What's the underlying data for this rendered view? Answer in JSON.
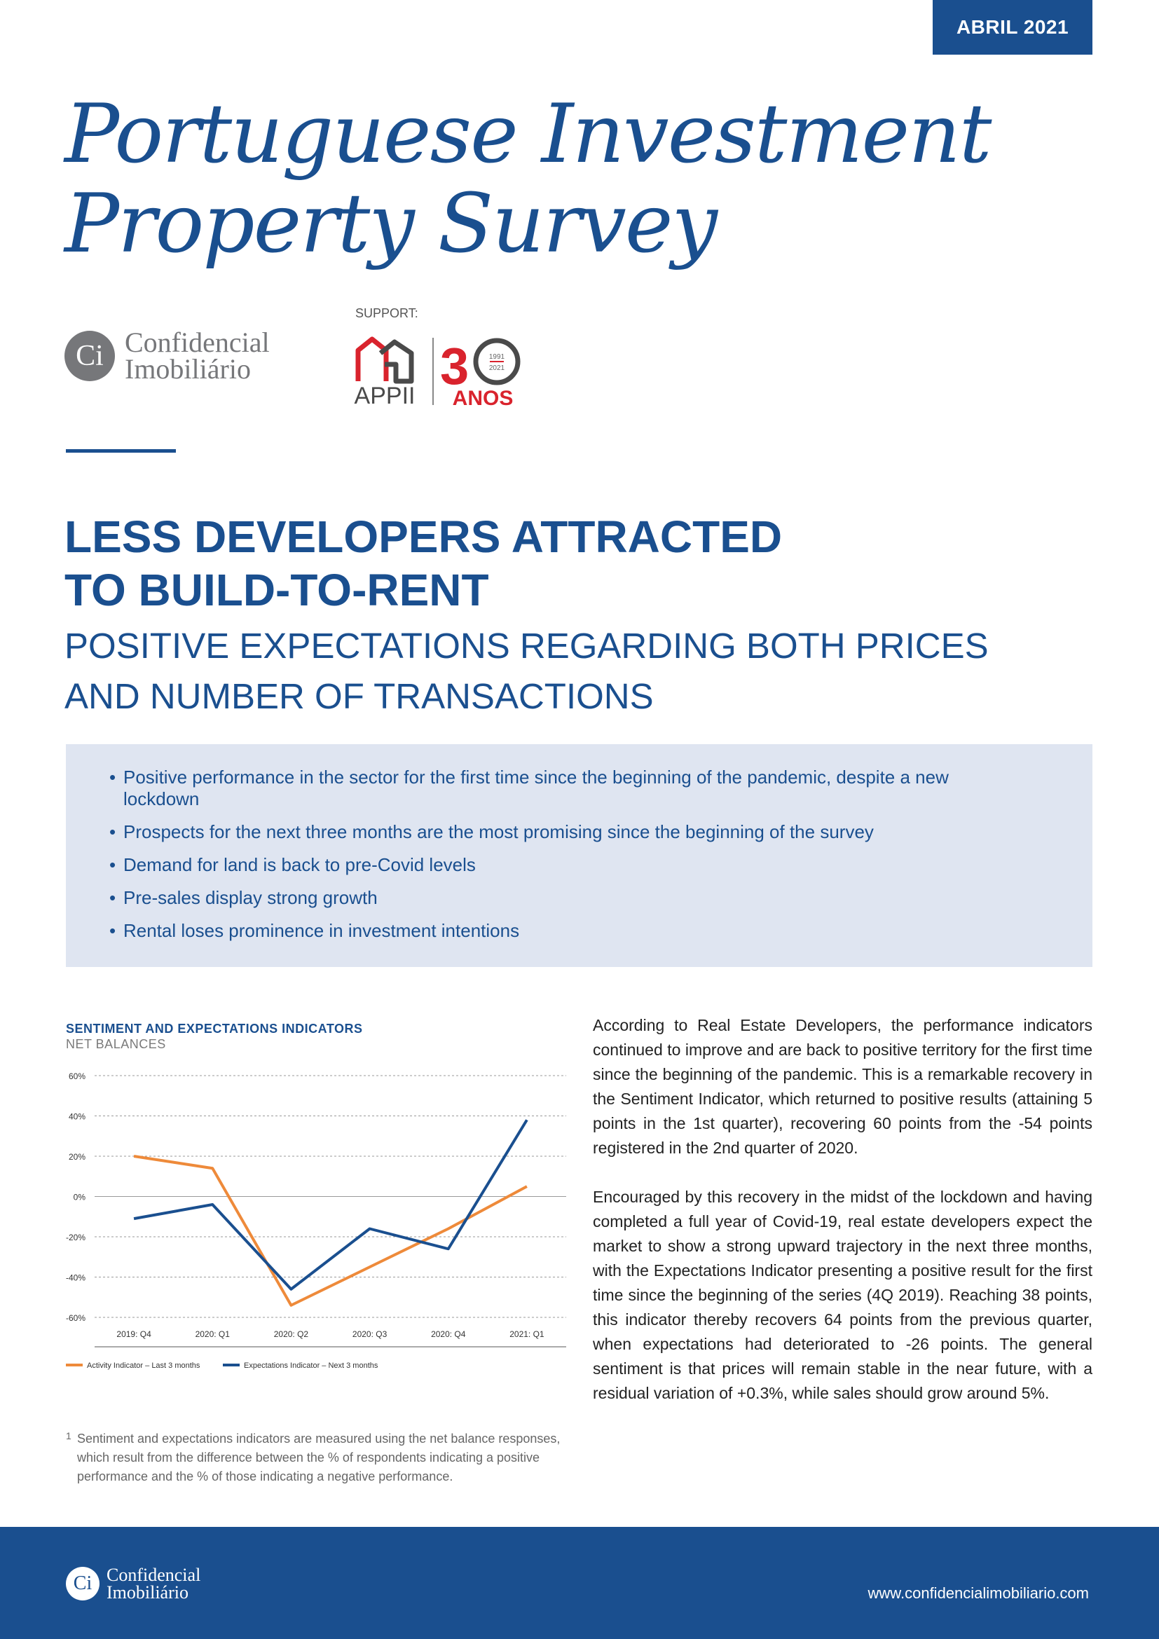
{
  "header": {
    "date_label": "ABRIL 2021"
  },
  "title": {
    "line1": "Portuguese Investment",
    "line2": "Property Survey"
  },
  "logos": {
    "ci_mark": "Ci",
    "ci_line1": "Confidencial",
    "ci_line2": "Imobiliário",
    "support_label": "SUPPORT:",
    "appii_text": "APPII",
    "appii_years_top": "1991",
    "appii_years_bottom": "2021",
    "appii_anos": "ANOS",
    "appii_number": "3"
  },
  "headline": {
    "line1": "LESS DEVELOPERS ATTRACTED",
    "line2": "TO BUILD-TO-RENT"
  },
  "subheadline": {
    "line1": "POSITIVE EXPECTATIONS REGARDING BOTH PRICES",
    "line2": "AND NUMBER OF TRANSACTIONS"
  },
  "highlights": [
    "Positive performance in the sector for the first time since the beginning of the pandemic, despite a new lockdown",
    "Prospects for the next three months are the most promising since the beginning of the survey",
    "Demand for land is back to pre-Covid levels",
    "Pre-sales display strong growth",
    "Rental loses prominence in investment intentions"
  ],
  "chart": {
    "title": "SENTIMENT AND EXPECTATIONS INDICATORS",
    "subtitle": "NET BALANCES"
  },
  "chart_data": {
    "type": "line",
    "title": "SENTIMENT AND EXPECTATIONS INDICATORS",
    "subtitle": "NET BALANCES",
    "categories": [
      "2019: Q4",
      "2020: Q1",
      "2020: Q2",
      "2020: Q3",
      "2020: Q4",
      "2021: Q1"
    ],
    "series": [
      {
        "name": "Activity Indicator – Last 3 months",
        "values": [
          20,
          14,
          -54,
          -35,
          -16,
          5
        ],
        "color": "#ee8a3a"
      },
      {
        "name": "Expectations Indicator – Next 3 months",
        "values": [
          -11,
          -4,
          -46,
          -16,
          -26,
          38
        ],
        "color": "#1a4f8f"
      }
    ],
    "ylim": [
      -60,
      60
    ],
    "yticks": [
      60,
      40,
      20,
      0,
      -20,
      -40,
      -60
    ],
    "ytick_labels": [
      "60%",
      "40%",
      "20%",
      "0%",
      "-20%",
      "-40%",
      "-60%"
    ],
    "grid": true,
    "legend": "bottom-left"
  },
  "footnote": {
    "marker": "1",
    "line1": "Sentiment and expectations indicators are measured using the net balance responses,",
    "line2": "which result from the difference between the % of respondents indicating a positive",
    "line3": "performance and the % of those indicating a negative performance."
  },
  "body": {
    "paragraph1": "According to Real Estate Developers, the performance indicators continued to improve and are back to positive territory for the first time since the beginning of the pandemic. This is a remarkable recovery in the Sentiment Indicator, which returned to positive results (attaining 5 points in the 1st quarter), recovering 60 points from the -54 points registered in the 2nd quarter of 2020.",
    "paragraph2": "Encouraged by this recovery in the midst of the lockdown and having completed a full year of Covid-19, real estate developers expect the market to show a strong upward trajectory in the next three months, with the Expectations Indicator presenting a positive result for the first time since the beginning of the series (4Q 2019). Reaching 38 points, this indicator thereby recovers 64 points from the previous quarter, when expectations had deteriorated to -26 points. The general sentiment is that prices will remain stable in the near future, with a residual variation of +0.3%, while sales should grow around 5%."
  },
  "footer": {
    "logo_mark": "Ci",
    "logo_line1": "Confidencial",
    "logo_line2": "Imobiliário",
    "url": "www.confidencialimobiliario.com"
  },
  "colors": {
    "brand_blue": "#1a4f8f",
    "orange": "#ee8a3a",
    "box_bg": "#dfe5f1",
    "appii_red": "#d9232d"
  }
}
